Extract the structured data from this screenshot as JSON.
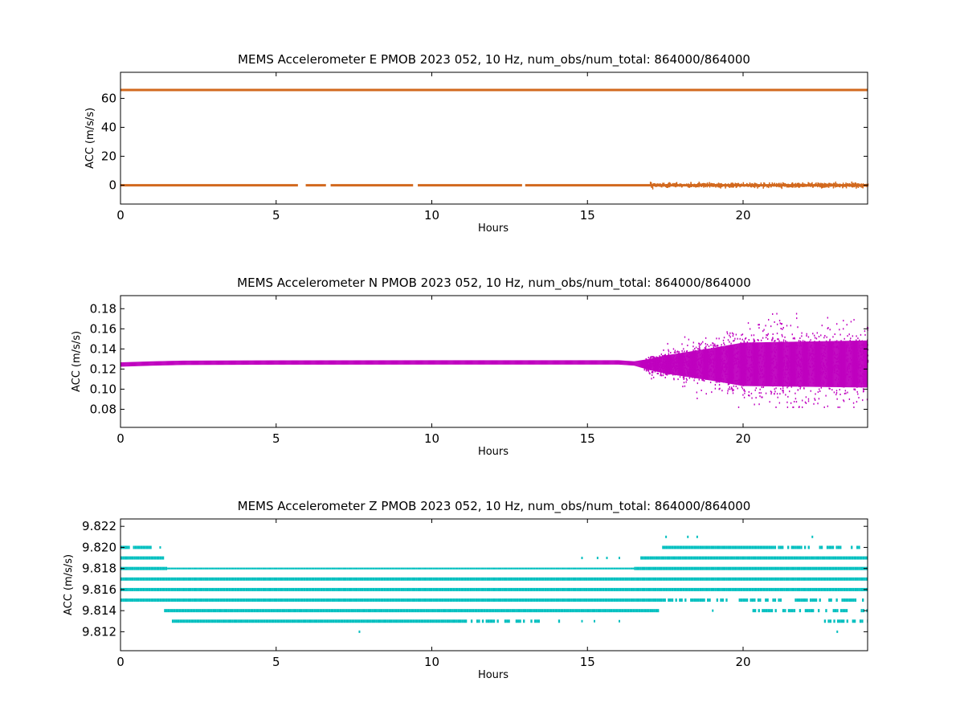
{
  "chart_data": [
    {
      "type": "scatter",
      "title": "MEMS Accelerometer E PMOB 2023 052, 10 Hz, num_obs/num_total: 864000/864000",
      "xlabel": "Hours",
      "ylabel": "ACC (m/s/s)",
      "xlim": [
        0,
        24
      ],
      "ylim": [
        -13,
        78
      ],
      "xticks": [
        "0",
        "5",
        "10",
        "15",
        "20"
      ],
      "yticks": [
        "0",
        "20",
        "40",
        "60"
      ],
      "color": "#d2691e",
      "series": [
        {
          "bands": [
            {
              "y": 65.8,
              "segments": [
                [
                  0,
                  24
                ]
              ]
            },
            {
              "y": 0.0,
              "segments": [
                [
                  0,
                  5.7
                ],
                [
                  5.95,
                  6.6
                ],
                [
                  6.75,
                  9.4
                ],
                [
                  9.55,
                  12.9
                ],
                [
                  13.0,
                  24
                ]
              ]
            }
          ],
          "noise": {
            "y": 0.0,
            "from": 17.0,
            "to": 24,
            "spread": 0.6
          }
        }
      ],
      "grid": false,
      "legend": "none"
    },
    {
      "type": "scatter",
      "title": "MEMS Accelerometer N PMOB 2023 052, 10 Hz, num_obs/num_total: 864000/864000",
      "xlabel": "Hours",
      "ylabel": "ACC (m/s/s)",
      "xlim": [
        0,
        24
      ],
      "ylim": [
        0.062,
        0.193
      ],
      "xticks": [
        "0",
        "5",
        "10",
        "15",
        "20"
      ],
      "yticks": [
        "0.08",
        "0.10",
        "0.12",
        "0.14",
        "0.16",
        "0.18"
      ],
      "color": "#bf00bf",
      "series": [
        {
          "baseline": [
            [
              0,
              0.1245
            ],
            [
              1,
              0.1255
            ],
            [
              2,
              0.1262
            ],
            [
              5,
              0.1265
            ],
            [
              10,
              0.1266
            ],
            [
              16,
              0.1266
            ],
            [
              17,
              0.1245
            ],
            [
              24,
              0.125
            ]
          ],
          "spread": [
            [
              0,
              0.0012
            ],
            [
              16.5,
              0.0012
            ],
            [
              17.5,
              0.005
            ],
            [
              19,
              0.009
            ],
            [
              20,
              0.012
            ],
            [
              24,
              0.013
            ]
          ],
          "extremes": {
            "max": 0.175,
            "min": 0.082
          }
        }
      ],
      "grid": false,
      "legend": "none"
    },
    {
      "type": "scatter",
      "title": "MEMS Accelerometer Z PMOB 2023 052, 10 Hz, num_obs/num_total: 864000/864000",
      "xlabel": "Hours",
      "ylabel": "ACC (m/s/s)",
      "xlim": [
        0,
        24
      ],
      "ylim": [
        9.8102,
        9.8227
      ],
      "xticks": [
        "0",
        "5",
        "10",
        "15",
        "20"
      ],
      "yticks": [
        "9.812",
        "9.814",
        "9.816",
        "9.818",
        "9.820",
        "9.822"
      ],
      "color": "#00bfbf",
      "series": [
        {
          "levels": [
            {
              "y": 9.821,
              "segments": [
                [
                  17.5,
                  17.6
                ],
                [
                  18.2,
                  18.3
                ],
                [
                  18.5,
                  18.6
                ],
                [
                  22.2,
                  22.3
                ]
              ]
            },
            {
              "y": 9.82,
              "segments": [
                [
                  0,
                  0.3
                ],
                [
                  0.4,
                  1.0
                ],
                [
                  1.25,
                  1.4
                ],
                [
                  17.4,
                  24
                ]
              ],
              "sparse_after": 21
            },
            {
              "y": 9.819,
              "segments": [
                [
                  0,
                  1.4
                ],
                [
                  14.8,
                  14.9
                ],
                [
                  15.3,
                  15.4
                ],
                [
                  15.6,
                  15.7
                ],
                [
                  16.0,
                  16.1
                ],
                [
                  16.7,
                  24
                ]
              ]
            },
            {
              "y": 9.818,
              "segments": [
                [
                  0,
                  24
                ]
              ],
              "thin_between": [
                1.5,
                16.5
              ]
            },
            {
              "y": 9.817,
              "segments": [
                [
                  0,
                  24
                ]
              ]
            },
            {
              "y": 9.816,
              "segments": [
                [
                  0,
                  24
                ]
              ]
            },
            {
              "y": 9.815,
              "segments": [
                [
                  0,
                  24
                ]
              ],
              "sparse_after": 17.5
            },
            {
              "y": 9.814,
              "segments": [
                [
                  1.4,
                  17.3
                ],
                [
                  19.0,
                  19.1
                ],
                [
                  20.3,
                  24
                ]
              ],
              "sparse_after": 17.3
            },
            {
              "y": 9.813,
              "segments": [
                [
                  1.65,
                  13.5
                ],
                [
                  14.0,
                  14.2
                ],
                [
                  14.8,
                  14.9
                ],
                [
                  15.2,
                  15.3
                ],
                [
                  16.0,
                  16.1
                ],
                [
                  22.6,
                  24
                ]
              ],
              "sparse_after": 11
            },
            {
              "y": 9.812,
              "segments": [
                [
                  7.65,
                  7.7
                ],
                [
                  23.0,
                  23.1
                ]
              ]
            }
          ]
        }
      ],
      "grid": false,
      "legend": "none"
    }
  ]
}
